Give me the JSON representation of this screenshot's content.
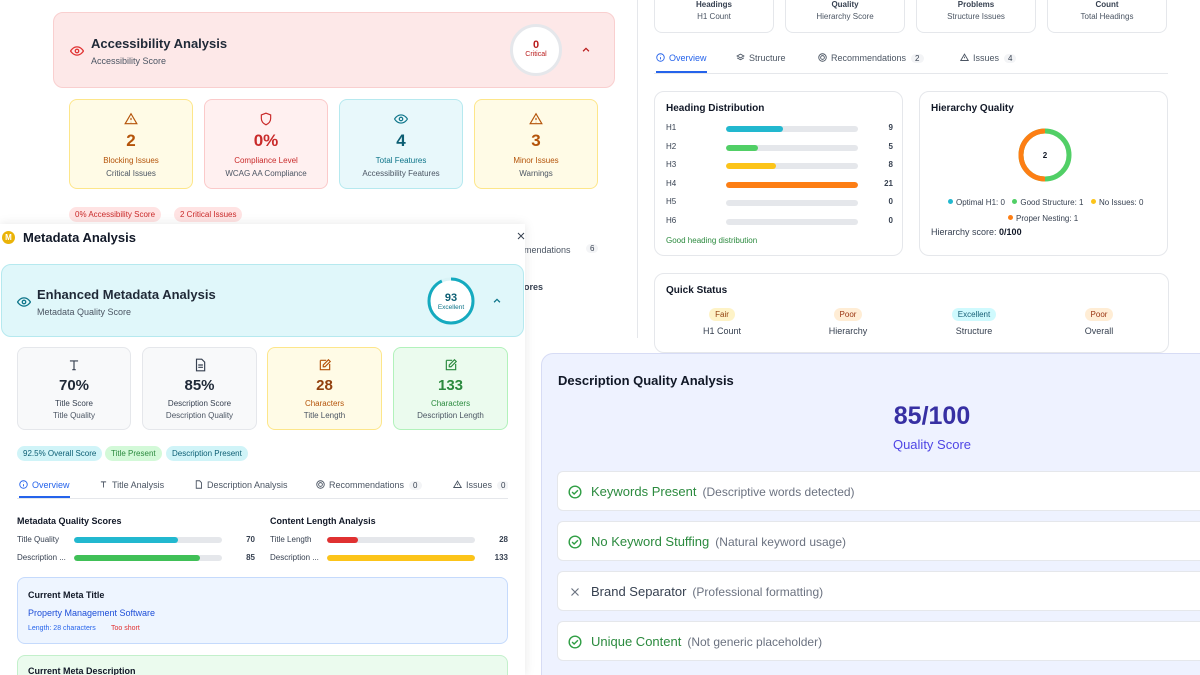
{
  "accessibility": {
    "title": "Accessibility Analysis",
    "subtitle": "Accessibility Score",
    "score": "0",
    "score_label": "Critical",
    "cards": [
      {
        "value": "2",
        "label": "Blocking Issues",
        "sub": "Critical Issues"
      },
      {
        "value": "0%",
        "label": "Compliance Level",
        "sub": "WCAG AA Compliance"
      },
      {
        "value": "4",
        "label": "Total Features",
        "sub": "Accessibility Features"
      },
      {
        "value": "3",
        "label": "Minor Issues",
        "sub": "Warnings"
      }
    ],
    "pills": [
      "0% Accessibility Score",
      "2 Critical Issues"
    ],
    "behind_fragments": [
      "mendations",
      "6",
      "ores"
    ]
  },
  "headings": {
    "stat_cards": [
      {
        "a": "Headings",
        "b": "H1 Count"
      },
      {
        "a": "Quality",
        "b": "Hierarchy Score"
      },
      {
        "a": "Problems",
        "b": "Structure Issues"
      },
      {
        "a": "Count",
        "b": "Total Headings"
      }
    ],
    "tabs": [
      {
        "label": "Overview"
      },
      {
        "label": "Structure"
      },
      {
        "label": "Recommendations",
        "badge": "2"
      },
      {
        "label": "Issues",
        "badge": "4"
      }
    ],
    "distribution": {
      "title": "Heading Distribution",
      "max": 21,
      "rows": [
        {
          "label": "H1",
          "value": 9,
          "color": "#22b8cf"
        },
        {
          "label": "H2",
          "value": 5,
          "color": "#51cf66"
        },
        {
          "label": "H3",
          "value": 8,
          "color": "#fcc419"
        },
        {
          "label": "H4",
          "value": 21,
          "color": "#fd7e14"
        },
        {
          "label": "H5",
          "value": 0,
          "color": "#adb5bd"
        },
        {
          "label": "H6",
          "value": 0,
          "color": "#adb5bd"
        }
      ],
      "note": "Good heading distribution"
    },
    "hierarchy": {
      "title": "Hierarchy Quality",
      "center": "2",
      "legend": [
        {
          "label": "Optimal H1: 0",
          "color": "#22b8cf"
        },
        {
          "label": "Good Structure: 1",
          "color": "#51cf66"
        },
        {
          "label": "No Issues: 0",
          "color": "#fcc419"
        },
        {
          "label": "Proper Nesting: 1",
          "color": "#fd7e14"
        }
      ],
      "score_label": "Hierarchy score:",
      "score_value": "0/100"
    },
    "quick_status": {
      "title": "Quick Status",
      "items": [
        {
          "badge": "Fair",
          "label": "H1 Count",
          "bg": "#fef3c7",
          "fg": "#92400e"
        },
        {
          "badge": "Poor",
          "label": "Hierarchy",
          "bg": "#ffedd5",
          "fg": "#9a3412"
        },
        {
          "badge": "Excellent",
          "label": "Structure",
          "bg": "#cffafe",
          "fg": "#155e75"
        },
        {
          "badge": "Poor",
          "label": "Overall",
          "bg": "#ffedd5",
          "fg": "#9a3412"
        }
      ]
    }
  },
  "metadata": {
    "window_title": "Metadata Analysis",
    "logo_letter": "M",
    "header_title": "Enhanced Metadata Analysis",
    "header_sub": "Metadata Quality Score",
    "score": "93",
    "score_label": "Excellent",
    "score_fraction": 0.93,
    "cards": [
      {
        "value": "70%",
        "label": "Title Score",
        "sub": "Title Quality"
      },
      {
        "value": "85%",
        "label": "Description Score",
        "sub": "Description Quality"
      },
      {
        "value": "28",
        "label": "Characters",
        "sub": "Title Length"
      },
      {
        "value": "133",
        "label": "Characters",
        "sub": "Description Length"
      }
    ],
    "pills": [
      "92.5% Overall Score",
      "Title Present",
      "Description Present"
    ],
    "tabs": [
      {
        "label": "Overview"
      },
      {
        "label": "Title Analysis"
      },
      {
        "label": "Description Analysis"
      },
      {
        "label": "Recommendations",
        "badge": "0"
      },
      {
        "label": "Issues",
        "badge": "0"
      }
    ],
    "quality_scores": {
      "title": "Metadata Quality Scores",
      "rows": [
        {
          "label": "Title Quality",
          "value": 70,
          "max": 100,
          "color": "#22b8cf"
        },
        {
          "label": "Description ...",
          "value": 85,
          "max": 100,
          "color": "#40c057"
        }
      ]
    },
    "content_length": {
      "title": "Content Length Analysis",
      "rows": [
        {
          "label": "Title Length",
          "value": 28,
          "max": 133,
          "color": "#e03131"
        },
        {
          "label": "Description ...",
          "value": 133,
          "max": 133,
          "color": "#fcc419"
        }
      ]
    },
    "current_title": {
      "heading": "Current Meta Title",
      "value": "Property Management Software",
      "length": "Length: 28 characters",
      "warning": "Too short"
    },
    "current_description": {
      "heading": "Current Meta Description"
    }
  },
  "description": {
    "title": "Description Quality Analysis",
    "score": "85/100",
    "score_label": "Quality Score",
    "checks": [
      {
        "label": "Keywords Present",
        "note": "(Descriptive words detected)",
        "pass": true
      },
      {
        "label": "No Keyword Stuffing",
        "note": "(Natural keyword usage)",
        "pass": true
      },
      {
        "label": "Brand Separator",
        "note": "(Professional formatting)",
        "pass": false
      },
      {
        "label": "Unique Content",
        "note": "(Not generic placeholder)",
        "pass": true
      }
    ]
  }
}
